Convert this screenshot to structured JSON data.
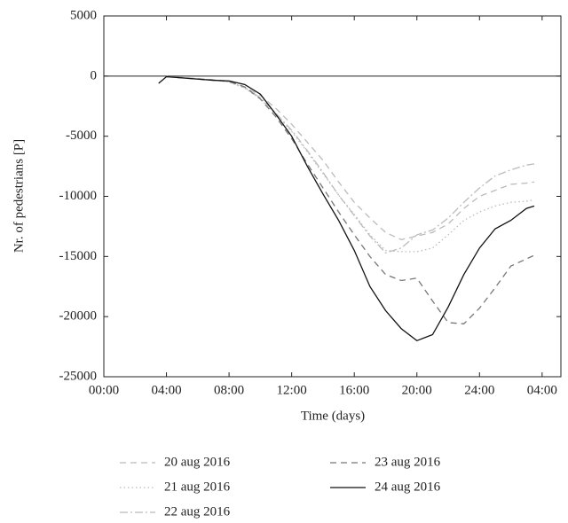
{
  "chart_data": {
    "type": "line",
    "x_label": "Time (days)",
    "y_label": "Nr. of pedestrians [P]",
    "x": [
      3.5,
      4,
      5,
      6,
      7,
      8,
      9,
      10,
      11,
      12,
      13,
      14,
      15,
      16,
      17,
      18,
      19,
      20,
      21,
      22,
      23,
      24,
      25,
      26,
      27,
      27.5
    ],
    "series": [
      {
        "name": "20 aug 2016",
        "color": "#bbbbbb",
        "dash": "7,5",
        "values": [
          null,
          -50,
          -120,
          -200,
          -300,
          -450,
          -900,
          -1600,
          -2700,
          -4000,
          -5500,
          -7000,
          -8800,
          -10500,
          -11800,
          -13000,
          -13600,
          -13300,
          -13000,
          -12300,
          -11000,
          -10000,
          -9500,
          -9000,
          -8900,
          -8800
        ]
      },
      {
        "name": "21 aug 2016",
        "color": "#bbbbbb",
        "dash": "1.5,3",
        "values": [
          null,
          -50,
          -130,
          -220,
          -320,
          -500,
          -1000,
          -1900,
          -3200,
          -4600,
          -6300,
          -8100,
          -9900,
          -11500,
          -13200,
          -14500,
          -14600,
          -14600,
          -14300,
          -13200,
          -12000,
          -11300,
          -10800,
          -10500,
          -10400,
          -10300
        ]
      },
      {
        "name": "22 aug 2016",
        "color": "#bbbbbb",
        "dash": "9,3,2,3",
        "values": [
          null,
          -50,
          -130,
          -220,
          -320,
          -480,
          -950,
          -1800,
          -3100,
          -4500,
          -6200,
          -8000,
          -9900,
          -11600,
          -13300,
          -14700,
          -14300,
          -13200,
          -12800,
          -11800,
          -10500,
          -9300,
          -8300,
          -7800,
          -7400,
          -7300
        ]
      },
      {
        "name": "23 aug 2016",
        "color": "#777777",
        "dash": "7,5",
        "values": [
          null,
          -50,
          -150,
          -250,
          -350,
          -450,
          -900,
          -1900,
          -3400,
          -5200,
          -7300,
          -9300,
          -11300,
          -13200,
          -15000,
          -16500,
          -17000,
          -16800,
          -18700,
          -20500,
          -20600,
          -19300,
          -17600,
          -15800,
          -15200,
          -14900
        ]
      },
      {
        "name": "24 aug 2016",
        "color": "#111111",
        "dash": "",
        "values": [
          -600,
          -50,
          -150,
          -250,
          -350,
          -400,
          -700,
          -1500,
          -3200,
          -5000,
          -7500,
          -9800,
          -12000,
          -14500,
          -17500,
          -19500,
          -21000,
          -22000,
          -21500,
          -19200,
          -16500,
          -14300,
          -12700,
          -12000,
          -11000,
          -10800
        ]
      }
    ],
    "xlim": [
      0,
      29.2
    ],
    "xticks": [
      {
        "value": 0,
        "label": "00:00"
      },
      {
        "value": 4,
        "label": "04:00"
      },
      {
        "value": 8,
        "label": "08:00"
      },
      {
        "value": 12,
        "label": "12:00"
      },
      {
        "value": 16,
        "label": "16:00"
      },
      {
        "value": 20,
        "label": "20:00"
      },
      {
        "value": 24,
        "label": "24:00"
      },
      {
        "value": 28,
        "label": "04:00"
      }
    ],
    "ylim": [
      -25000,
      5000
    ],
    "yticks": [
      -25000,
      -20000,
      -15000,
      -10000,
      -5000,
      0,
      5000
    ],
    "zero_line": true
  }
}
